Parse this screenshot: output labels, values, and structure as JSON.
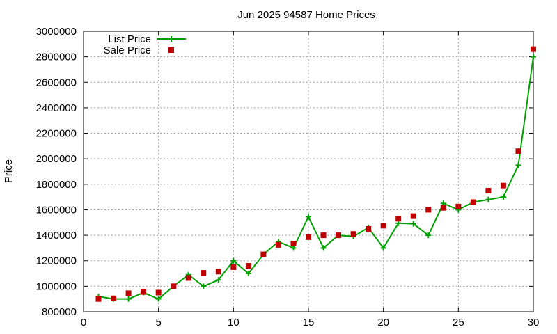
{
  "chart_data": {
    "type": "line",
    "title": "Jun 2025 94587 Home Prices",
    "xlabel": "",
    "ylabel": "Price",
    "xlim": [
      0,
      30
    ],
    "ylim": [
      800000,
      3000000
    ],
    "xticks": [
      "0",
      "5",
      "10",
      "15",
      "20",
      "25",
      "30"
    ],
    "yticks": [
      "800000",
      "1000000",
      "1200000",
      "1400000",
      "1600000",
      "1800000",
      "2000000",
      "2200000",
      "2400000",
      "2600000",
      "2800000",
      "3000000"
    ],
    "grid": true,
    "legend_position": "top-left",
    "series": [
      {
        "name": "List Price",
        "style": "line-with-plus-markers",
        "color": "#00a000",
        "x": [
          1,
          2,
          3,
          4,
          5,
          6,
          7,
          8,
          9,
          10,
          11,
          12,
          13,
          14,
          15,
          16,
          17,
          18,
          19,
          20,
          21,
          22,
          23,
          24,
          25,
          26,
          27,
          28,
          29,
          30
        ],
        "values": [
          920000,
          900000,
          900000,
          950000,
          900000,
          1000000,
          1090000,
          1000000,
          1050000,
          1200000,
          1100000,
          1250000,
          1350000,
          1300000,
          1545000,
          1300000,
          1400000,
          1390000,
          1460000,
          1300000,
          1495000,
          1490000,
          1400000,
          1650000,
          1600000,
          1660000,
          1680000,
          1700000,
          1950000,
          2800000
        ]
      },
      {
        "name": "Sale Price",
        "style": "square-markers",
        "color": "#c00000",
        "x": [
          1,
          2,
          3,
          4,
          5,
          6,
          7,
          8,
          9,
          10,
          11,
          12,
          13,
          14,
          15,
          16,
          17,
          18,
          19,
          20,
          21,
          22,
          23,
          24,
          25,
          26,
          27,
          28,
          29,
          30
        ],
        "values": [
          900000,
          905000,
          945000,
          955000,
          950000,
          1000000,
          1065000,
          1105000,
          1115000,
          1150000,
          1160000,
          1250000,
          1325000,
          1335000,
          1385000,
          1400000,
          1400000,
          1410000,
          1450000,
          1475000,
          1530000,
          1550000,
          1600000,
          1615000,
          1625000,
          1660000,
          1750000,
          1790000,
          2060000,
          2860000
        ]
      }
    ]
  }
}
